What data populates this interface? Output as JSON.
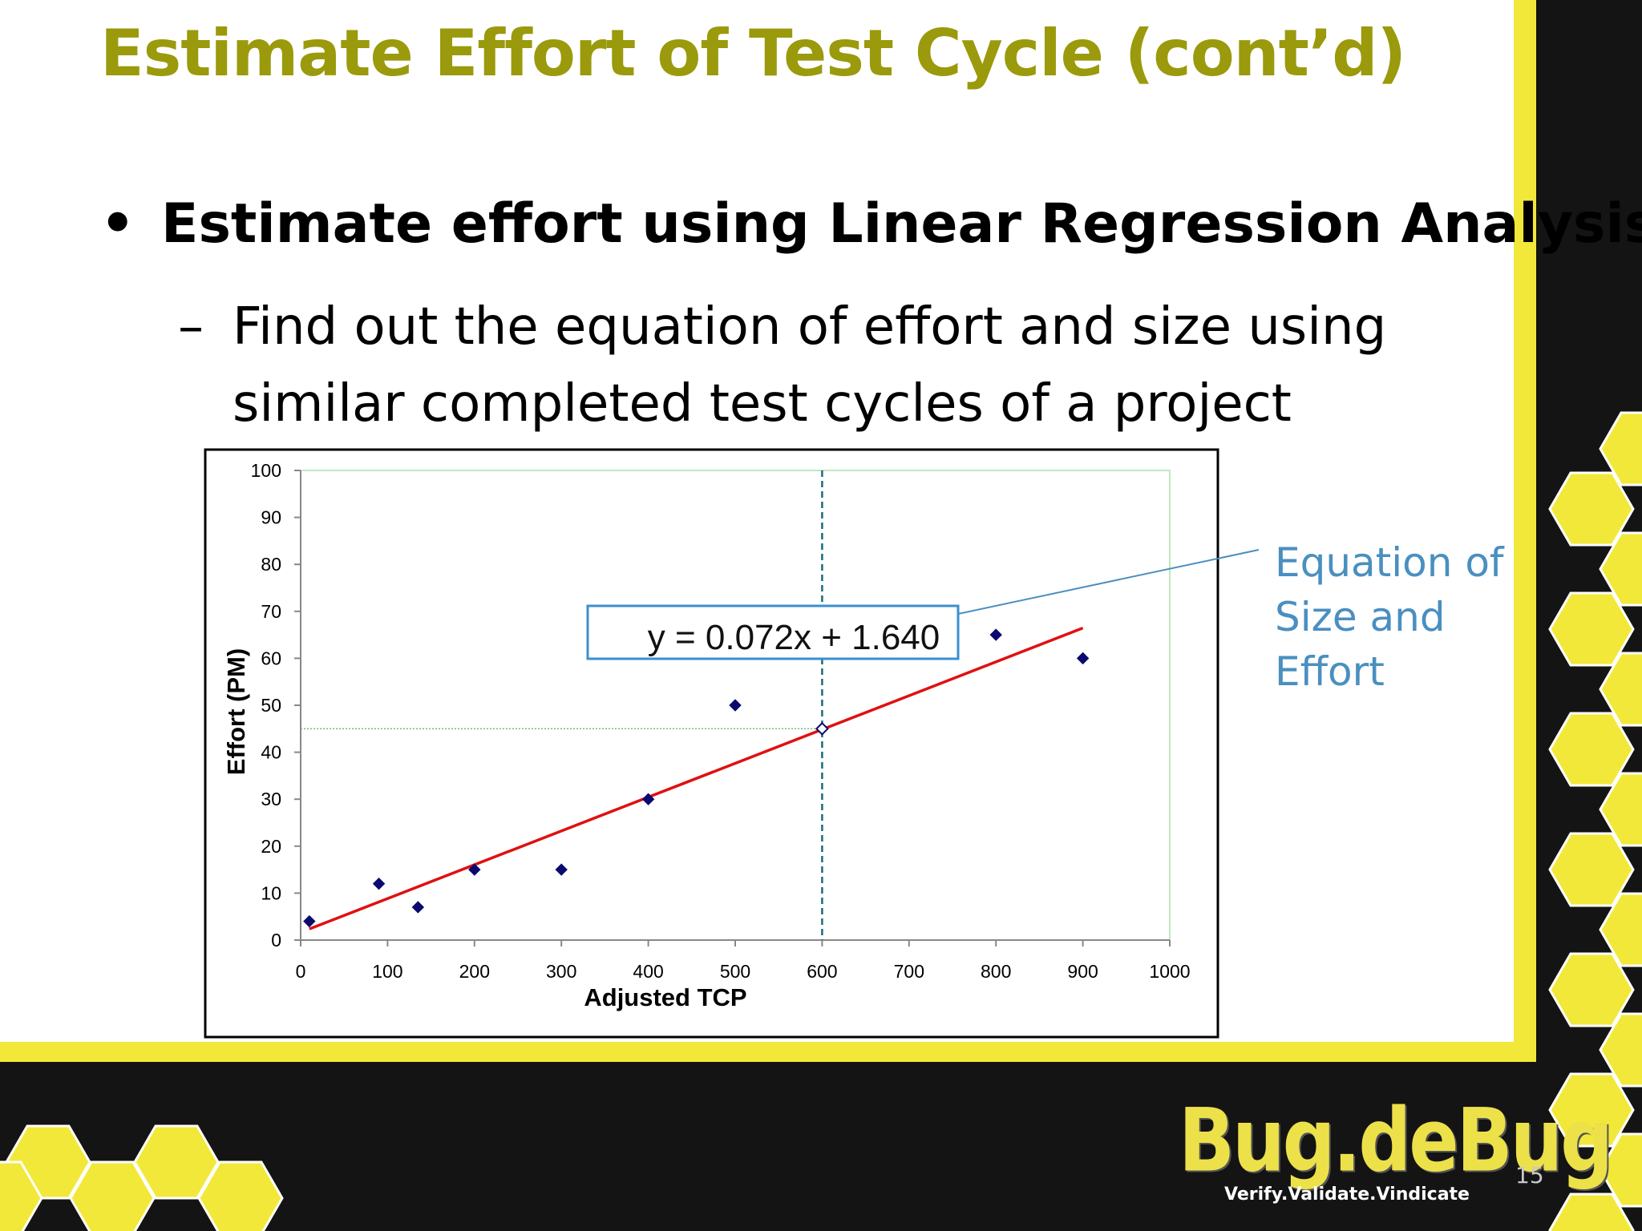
{
  "slide": {
    "title": "Estimate Effort of Test Cycle (cont’d)",
    "bullet": "Estimate effort using Linear Regression Analysis",
    "sub_bullet_dash": "–",
    "sub_bullet": "Find out the equation of effort and size using similar completed test cycles of a project",
    "page_number": "15"
  },
  "callout": {
    "text": "Equation of Size and Effort"
  },
  "logo": {
    "name": "Bug.deBug",
    "tagline": "Verify.Validate.Vindicate"
  },
  "colors": {
    "title": "#9a9a0c",
    "points": "#0a0a6e",
    "trend_line": "#e01010",
    "callout": "#4a8fc0",
    "honeycomb": "#f2e83a",
    "dark_band": "#141414"
  },
  "chart_data": {
    "type": "scatter",
    "xlabel": "Adjusted TCP",
    "ylabel": "Effort (PM)",
    "xlim": [
      0,
      1000
    ],
    "ylim": [
      0,
      100
    ],
    "x_ticks": [
      0,
      100,
      200,
      300,
      400,
      500,
      600,
      700,
      800,
      900,
      1000
    ],
    "y_ticks": [
      0,
      10,
      20,
      30,
      40,
      50,
      60,
      70,
      80,
      90,
      100
    ],
    "points": [
      {
        "x": 10,
        "y": 4
      },
      {
        "x": 90,
        "y": 12
      },
      {
        "x": 135,
        "y": 7
      },
      {
        "x": 200,
        "y": 15
      },
      {
        "x": 300,
        "y": 15
      },
      {
        "x": 400,
        "y": 30
      },
      {
        "x": 500,
        "y": 50
      },
      {
        "x": 600,
        "y": 45
      },
      {
        "x": 800,
        "y": 65
      },
      {
        "x": 900,
        "y": 60
      }
    ],
    "trendline": {
      "slope": 0.072,
      "intercept": 1.64,
      "x_range": [
        10,
        900
      ]
    },
    "equation": "y = 0.072x + 1.640",
    "reference": {
      "x": 600,
      "y": 45
    }
  }
}
